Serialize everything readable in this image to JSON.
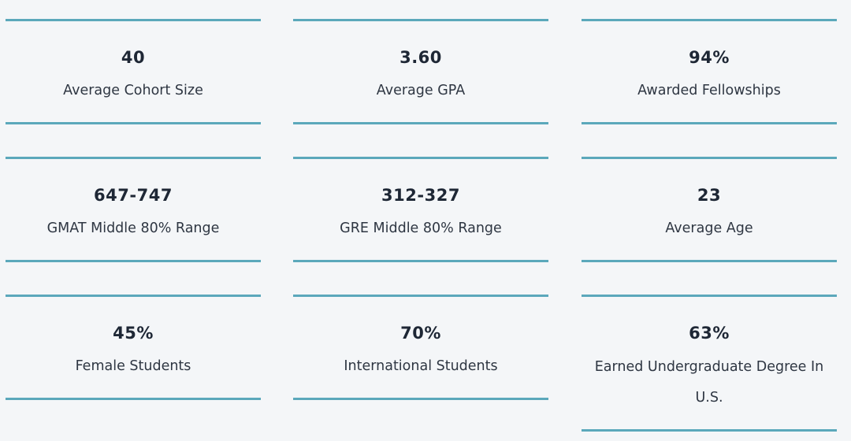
{
  "accent_color": "#5ba8bb",
  "stats": [
    {
      "value": "40",
      "label": "Average Cohort Size"
    },
    {
      "value": "3.60",
      "label": "Average GPA"
    },
    {
      "value": "94%",
      "label": "Awarded Fellowships"
    },
    {
      "value": "647-747",
      "label": "GMAT Middle 80% Range"
    },
    {
      "value": "312-327",
      "label": "GRE Middle 80% Range"
    },
    {
      "value": "23",
      "label": "Average Age"
    },
    {
      "value": "45%",
      "label": "Female Students"
    },
    {
      "value": "70%",
      "label": "International Students"
    },
    {
      "value": "63%",
      "label": "Earned Undergraduate Degree In U.S."
    }
  ]
}
